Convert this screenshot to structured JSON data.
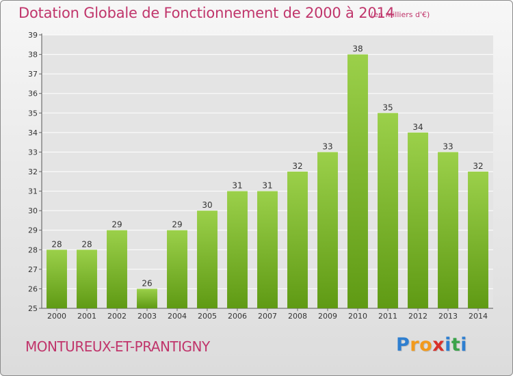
{
  "chart_data": {
    "type": "bar",
    "title": "Dotation Globale de Fonctionnement de 2000 à 2014",
    "subtitle": "(en milliers d'€)",
    "categories": [
      "2000",
      "2001",
      "2002",
      "2003",
      "2004",
      "2005",
      "2006",
      "2007",
      "2008",
      "2009",
      "2010",
      "2011",
      "2012",
      "2013",
      "2014"
    ],
    "values": [
      28,
      28,
      29,
      26,
      29,
      30,
      31,
      31,
      32,
      33,
      38,
      35,
      34,
      33,
      32
    ],
    "data_labels": [
      "28",
      "28",
      "29",
      "26",
      "29",
      "30",
      "31",
      "31",
      "32",
      "33",
      "38",
      "35",
      "34",
      "33",
      "32"
    ],
    "y_ticks": [
      "25",
      "26",
      "27",
      "28",
      "29",
      "30",
      "31",
      "32",
      "33",
      "34",
      "35",
      "36",
      "37",
      "38",
      "39"
    ],
    "ylim": [
      25,
      39
    ],
    "grid": true,
    "legend": "none",
    "bar_color_top": "#9bd04a",
    "bar_color_bottom": "#5f9a14",
    "grid_color": "#ffffff"
  },
  "footer": {
    "commune": "MONTUREUX-ET-PRANTIGNY",
    "logo_letters": [
      "P",
      "r",
      "o",
      "x",
      "i",
      "t",
      "i"
    ],
    "logo_colors": [
      "#2f7fd0",
      "#f29a1c",
      "#f29a1c",
      "#d8302a",
      "#2f7fd0",
      "#3aa34a",
      "#2f7fd0"
    ]
  },
  "colors": {
    "title": "#c0356b",
    "accent": "#c0356b"
  }
}
